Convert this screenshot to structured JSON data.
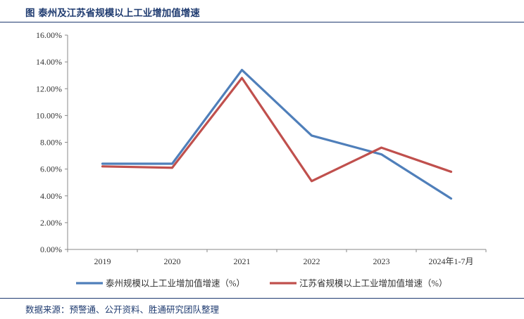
{
  "title": "图  泰州及江苏省规模以上工业增加值增速",
  "source": "数据来源：预警通、公开资料、胜通研究团队整理",
  "colors": {
    "series1": "#4f7fba",
    "series2": "#c0504d",
    "axis": "#888888",
    "heading": "#1f3b70"
  },
  "chart_data": {
    "type": "line",
    "categories": [
      "2019",
      "2020",
      "2021",
      "2022",
      "2023",
      "2024年1-7月"
    ],
    "series": [
      {
        "name": "泰州规模以上工业增加值增速（%）",
        "values": [
          0.064,
          0.064,
          0.134,
          0.085,
          0.071,
          0.038
        ]
      },
      {
        "name": "江苏省规模以上工业增加值增速（%）",
        "values": [
          0.062,
          0.061,
          0.128,
          0.051,
          0.076,
          0.058
        ]
      }
    ],
    "y_ticks": [
      "0.00%",
      "2.00%",
      "4.00%",
      "6.00%",
      "8.00%",
      "10.00%",
      "12.00%",
      "14.00%",
      "16.00%"
    ],
    "ylim": [
      0,
      0.16
    ],
    "grid": false,
    "legend_position": "bottom"
  }
}
